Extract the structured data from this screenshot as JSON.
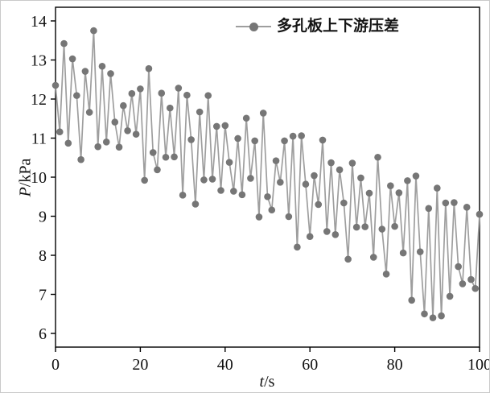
{
  "figure": {
    "background": "#ffffff",
    "frame_color": "#000000"
  },
  "legend": {
    "label": "多孔板上下游压差",
    "marker_color": "#767676",
    "line_color": "#9e9e9e"
  },
  "axes": {
    "x": {
      "var": "t",
      "unit": "/s",
      "ticks": [
        0,
        20,
        40,
        60,
        80,
        100
      ]
    },
    "y": {
      "var": "P",
      "unit": "/kPa",
      "ticks": [
        6,
        7,
        8,
        9,
        10,
        11,
        12,
        13,
        14
      ]
    }
  },
  "chart_data": {
    "type": "line",
    "title": "",
    "xlabel": "t/s",
    "ylabel": "P/kPa",
    "xlim": [
      0,
      100
    ],
    "ylim": [
      6,
      14
    ],
    "grid": false,
    "legend_position": "top-center-inside",
    "series": [
      {
        "name": "多孔板上下游压差",
        "marker": "circle",
        "color": "#767676",
        "line_color": "#9e9e9e",
        "x": [
          0,
          1,
          2,
          3,
          4,
          5,
          6,
          7,
          8,
          9,
          10,
          11,
          12,
          13,
          14,
          15,
          16,
          17,
          18,
          19,
          20,
          21,
          22,
          23,
          24,
          25,
          26,
          27,
          28,
          29,
          30,
          31,
          32,
          33,
          34,
          35,
          36,
          37,
          38,
          39,
          40,
          41,
          42,
          43,
          44,
          45,
          46,
          47,
          48,
          49,
          50,
          51,
          52,
          53,
          54,
          55,
          56,
          57,
          58,
          59,
          60,
          61,
          62,
          63,
          64,
          65,
          66,
          67,
          68,
          69,
          70,
          71,
          72,
          73,
          74,
          75,
          76,
          77,
          78,
          79,
          80,
          81,
          82,
          83,
          84,
          85,
          86,
          87,
          88,
          89,
          90,
          91,
          92,
          93,
          94,
          95,
          96,
          97,
          98,
          99,
          100
        ],
        "values": [
          12.35,
          11.16,
          13.42,
          10.87,
          13.03,
          12.09,
          10.45,
          12.71,
          11.66,
          13.75,
          10.78,
          12.84,
          10.9,
          12.65,
          11.41,
          10.77,
          11.83,
          11.19,
          12.14,
          11.1,
          12.26,
          9.92,
          12.78,
          10.63,
          10.19,
          12.15,
          10.51,
          11.77,
          10.52,
          12.28,
          9.54,
          12.1,
          10.96,
          9.31,
          11.67,
          9.93,
          12.09,
          9.95,
          11.3,
          9.66,
          11.32,
          10.38,
          9.64,
          10.99,
          9.55,
          11.51,
          9.97,
          10.93,
          8.98,
          11.64,
          9.5,
          9.16,
          10.42,
          9.87,
          10.93,
          8.99,
          11.05,
          8.21,
          11.06,
          9.82,
          8.48,
          10.04,
          9.3,
          10.95,
          8.61,
          10.37,
          8.53,
          10.19,
          9.34,
          7.9,
          10.36,
          8.72,
          9.98,
          8.73,
          9.59,
          7.95,
          10.51,
          8.67,
          7.52,
          9.78,
          8.74,
          9.6,
          8.06,
          9.91,
          6.85,
          10.03,
          8.09,
          6.5,
          9.2,
          6.4,
          9.72,
          6.45,
          9.34,
          6.95,
          9.35,
          7.71,
          7.27,
          9.23,
          7.38,
          7.15,
          9.05
        ]
      }
    ]
  }
}
